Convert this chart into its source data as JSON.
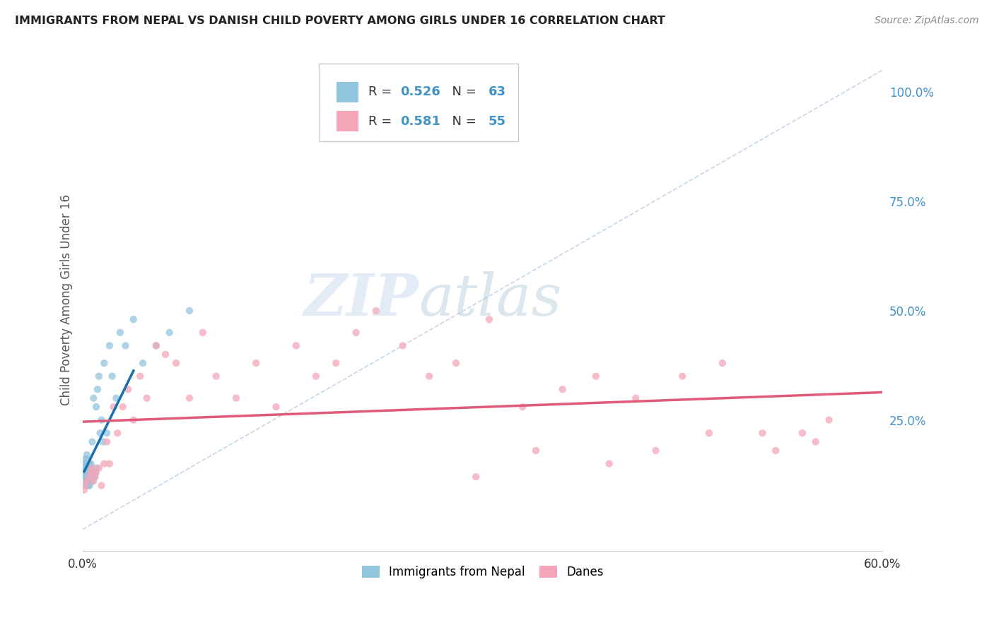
{
  "title": "IMMIGRANTS FROM NEPAL VS DANISH CHILD POVERTY AMONG GIRLS UNDER 16 CORRELATION CHART",
  "source": "Source: ZipAtlas.com",
  "ylabel": "Child Poverty Among Girls Under 16",
  "xlim": [
    0.0,
    0.6
  ],
  "ylim": [
    -0.05,
    1.1
  ],
  "xticks": [
    0.0,
    0.1,
    0.2,
    0.3,
    0.4,
    0.5,
    0.6
  ],
  "xticklabels": [
    "0.0%",
    "",
    "",
    "",
    "",
    "",
    "60.0%"
  ],
  "yticks_right": [
    0.0,
    0.25,
    0.5,
    0.75,
    1.0
  ],
  "yticklabels_right": [
    "",
    "25.0%",
    "50.0%",
    "75.0%",
    "100.0%"
  ],
  "color_blue": "#92c5de",
  "color_pink": "#f4a6b8",
  "color_blue_text": "#4292c6",
  "line_blue": "#1a6faf",
  "line_pink": "#e05a7a",
  "line_diag_color": "#aec6e0",
  "watermark_color": "#ccddef",
  "nepal_x": [
    0.001,
    0.001,
    0.001,
    0.002,
    0.002,
    0.002,
    0.002,
    0.002,
    0.002,
    0.002,
    0.003,
    0.003,
    0.003,
    0.003,
    0.003,
    0.003,
    0.003,
    0.003,
    0.004,
    0.004,
    0.004,
    0.004,
    0.004,
    0.004,
    0.005,
    0.005,
    0.005,
    0.005,
    0.005,
    0.005,
    0.006,
    0.006,
    0.006,
    0.006,
    0.006,
    0.007,
    0.007,
    0.007,
    0.007,
    0.008,
    0.008,
    0.008,
    0.009,
    0.009,
    0.01,
    0.01,
    0.011,
    0.012,
    0.013,
    0.014,
    0.015,
    0.016,
    0.018,
    0.02,
    0.022,
    0.025,
    0.028,
    0.032,
    0.038,
    0.045,
    0.055,
    0.065,
    0.08
  ],
  "nepal_y": [
    0.12,
    0.14,
    0.15,
    0.1,
    0.11,
    0.12,
    0.13,
    0.14,
    0.15,
    0.16,
    0.1,
    0.11,
    0.12,
    0.13,
    0.14,
    0.15,
    0.16,
    0.17,
    0.1,
    0.11,
    0.12,
    0.13,
    0.14,
    0.15,
    0.1,
    0.11,
    0.12,
    0.13,
    0.14,
    0.15,
    0.11,
    0.12,
    0.13,
    0.14,
    0.15,
    0.11,
    0.12,
    0.13,
    0.2,
    0.12,
    0.13,
    0.3,
    0.12,
    0.13,
    0.14,
    0.28,
    0.32,
    0.35,
    0.22,
    0.25,
    0.2,
    0.38,
    0.22,
    0.42,
    0.35,
    0.3,
    0.45,
    0.42,
    0.48,
    0.38,
    0.42,
    0.45,
    0.5
  ],
  "danes_x": [
    0.001,
    0.002,
    0.003,
    0.005,
    0.006,
    0.007,
    0.008,
    0.009,
    0.01,
    0.012,
    0.014,
    0.016,
    0.018,
    0.02,
    0.023,
    0.026,
    0.03,
    0.034,
    0.038,
    0.043,
    0.048,
    0.055,
    0.062,
    0.07,
    0.08,
    0.09,
    0.1,
    0.115,
    0.13,
    0.145,
    0.16,
    0.175,
    0.19,
    0.205,
    0.22,
    0.24,
    0.26,
    0.28,
    0.305,
    0.33,
    0.36,
    0.385,
    0.415,
    0.45,
    0.48,
    0.51,
    0.54,
    0.56,
    0.55,
    0.52,
    0.47,
    0.43,
    0.395,
    0.34,
    0.295
  ],
  "danes_y": [
    0.09,
    0.1,
    0.11,
    0.12,
    0.13,
    0.14,
    0.11,
    0.12,
    0.13,
    0.14,
    0.1,
    0.15,
    0.2,
    0.15,
    0.28,
    0.22,
    0.28,
    0.32,
    0.25,
    0.35,
    0.3,
    0.42,
    0.4,
    0.38,
    0.3,
    0.45,
    0.35,
    0.3,
    0.38,
    0.28,
    0.42,
    0.35,
    0.38,
    0.45,
    0.5,
    0.42,
    0.35,
    0.38,
    0.48,
    0.28,
    0.32,
    0.35,
    0.3,
    0.35,
    0.38,
    0.22,
    0.22,
    0.25,
    0.2,
    0.18,
    0.22,
    0.18,
    0.15,
    0.18,
    0.12
  ]
}
